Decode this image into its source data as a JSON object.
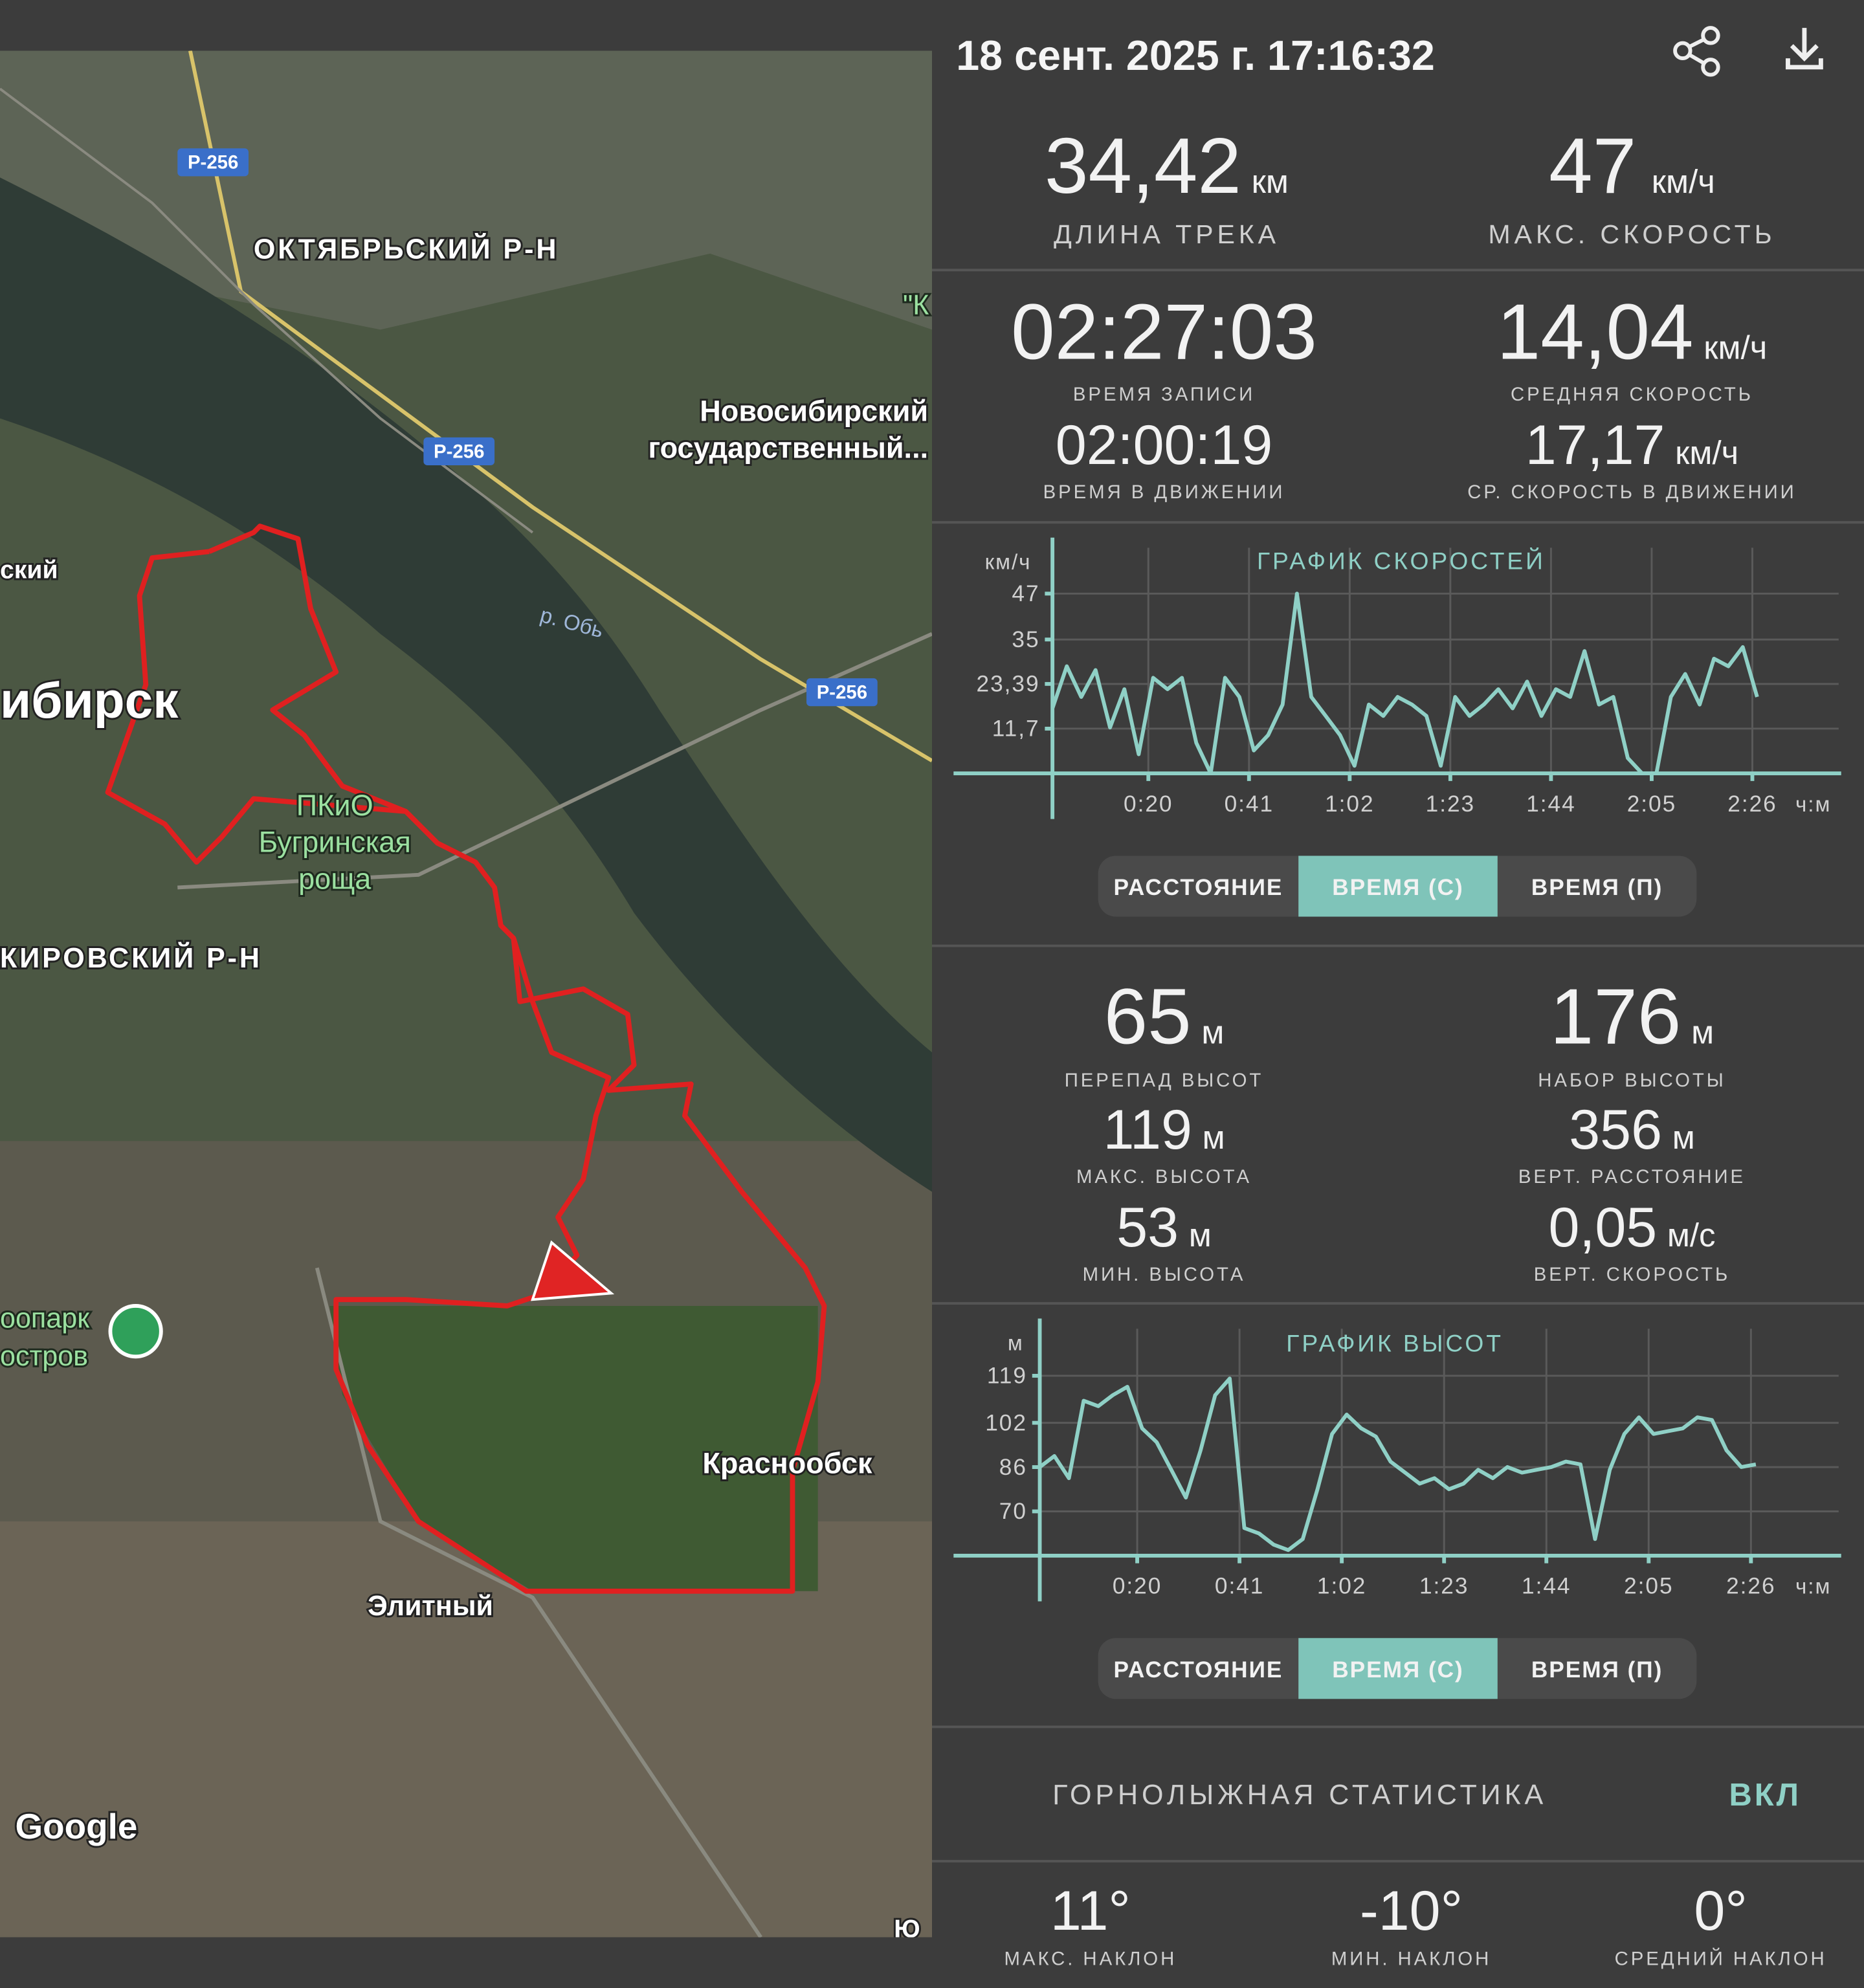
{
  "header": {
    "title": "18 сент. 2025 г. 17:16:32"
  },
  "map": {
    "labels": [
      "Р-256",
      "Р-256",
      "Р-256",
      "ОКТЯБРЬСКИЙ Р-Н",
      "Новосибирский",
      "государственный...",
      "р. Обь",
      "ибирск",
      "ский",
      "ПКиО",
      "Бугринская",
      "роща",
      "КИРОВСКИЙ Р-Н",
      "оопарк",
      "остров",
      "Краснообск",
      "Элитный",
      "Google",
      "\"К",
      "Ю"
    ]
  },
  "stats": [
    {
      "value": "34,42",
      "unit": "км",
      "label": "ДЛИНА ТРЕКА"
    },
    {
      "value": "47",
      "unit": "км/ч",
      "label": "МАКС. СКОРОСТЬ"
    },
    {
      "value": "02:27:03",
      "label": "ВРЕМЯ ЗАПИСИ"
    },
    {
      "value": "14,04",
      "unit": "км/ч",
      "label": "СРЕДНЯЯ СКОРОСТЬ"
    },
    {
      "value": "02:00:19",
      "label": "ВРЕМЯ В ДВИЖЕНИИ"
    },
    {
      "value": "17,17",
      "unit": "км/ч",
      "label": "СР. СКОРОСТЬ В ДВИЖЕНИИ"
    },
    {
      "value": "65",
      "unit": "м",
      "label": "ПЕРЕПАД ВЫСОТ"
    },
    {
      "value": "176",
      "unit": "м",
      "label": "НАБОР ВЫСОТЫ"
    },
    {
      "value": "119",
      "unit": "м",
      "label": "МАКС. ВЫСОТА"
    },
    {
      "value": "356",
      "unit": "м",
      "label": "ВЕРТ. РАССТОЯНИЕ"
    },
    {
      "value": "53",
      "unit": "м",
      "label": "МИН. ВЫСОТА"
    },
    {
      "value": "0,05",
      "unit": "м/с",
      "label": "ВЕРТ. СКОРОСТЬ"
    }
  ],
  "speed_chart": {
    "type": "line",
    "title": "ГРАФИК СКОРОСТЕЙ",
    "ylabel": "км/ч",
    "xlabel": "ч:м",
    "color": "#8fd0c6",
    "grid": true,
    "xlim": [
      0,
      164
    ],
    "ylim": [
      0,
      59
    ],
    "xticks": [
      {
        "value": 20,
        "label": "0:20"
      },
      {
        "value": 41,
        "label": "0:41"
      },
      {
        "value": 62,
        "label": "1:02"
      },
      {
        "value": 83,
        "label": "1:23"
      },
      {
        "value": 104,
        "label": "1:44"
      },
      {
        "value": 125,
        "label": "2:05"
      },
      {
        "value": 146,
        "label": "2:26"
      }
    ],
    "yticks": [
      {
        "value": 11.7,
        "label": "11,7"
      },
      {
        "value": 23.39,
        "label": "23,39"
      },
      35,
      47
    ],
    "x": [
      0,
      3,
      6,
      9,
      12,
      15,
      18,
      21,
      24,
      27,
      30,
      33,
      36,
      39,
      42,
      45,
      48,
      51,
      54,
      57,
      60,
      63,
      66,
      69,
      72,
      75,
      78,
      81,
      84,
      87,
      90,
      93,
      96,
      99,
      102,
      105,
      108,
      111,
      114,
      117,
      120,
      123,
      126,
      129,
      132,
      135,
      138,
      141,
      144,
      147
    ],
    "values": [
      17,
      28,
      20,
      27,
      12,
      22,
      5,
      25,
      22,
      25,
      8,
      0,
      25,
      20,
      6,
      10,
      18,
      47,
      20,
      15,
      10,
      2,
      18,
      15,
      20,
      18,
      15,
      2,
      20,
      15,
      18,
      22,
      17,
      24,
      15,
      22,
      20,
      32,
      18,
      20,
      4,
      0,
      0,
      20,
      26,
      18,
      30,
      28,
      33,
      20
    ]
  },
  "speed_toggle": {
    "options": [
      "РАССТОЯНИЕ",
      "ВРЕМЯ (С)",
      "ВРЕМЯ (П)"
    ],
    "selected": 1
  },
  "elevation_chart": {
    "type": "line",
    "title": "ГРАФИК ВЫСОТ",
    "ylabel": "м",
    "xlabel": "ч:м",
    "color": "#8fd0c6",
    "grid": true,
    "xlim": [
      0,
      164
    ],
    "ylim": [
      54,
      136
    ],
    "xticks": [
      {
        "value": 20,
        "label": "0:20"
      },
      {
        "value": 41,
        "label": "0:41"
      },
      {
        "value": 62,
        "label": "1:02"
      },
      {
        "value": 83,
        "label": "1:23"
      },
      {
        "value": 104,
        "label": "1:44"
      },
      {
        "value": 125,
        "label": "2:05"
      },
      {
        "value": 146,
        "label": "2:26"
      }
    ],
    "yticks": [
      70,
      86,
      102,
      119
    ],
    "x": [
      0,
      3,
      6,
      9,
      12,
      15,
      18,
      21,
      24,
      27,
      30,
      33,
      36,
      39,
      42,
      45,
      48,
      51,
      54,
      57,
      60,
      63,
      66,
      69,
      72,
      75,
      78,
      81,
      84,
      87,
      90,
      93,
      96,
      99,
      102,
      105,
      108,
      111,
      114,
      117,
      120,
      123,
      126,
      129,
      132,
      135,
      138,
      141,
      144,
      147
    ],
    "values": [
      86,
      90,
      82,
      110,
      108,
      112,
      115,
      100,
      95,
      85,
      75,
      92,
      112,
      118,
      64,
      62,
      58,
      56,
      60,
      78,
      98,
      105,
      100,
      97,
      88,
      84,
      80,
      82,
      78,
      80,
      85,
      82,
      86,
      84,
      85,
      86,
      88,
      87,
      60,
      85,
      98,
      104,
      98,
      99,
      100,
      104,
      103,
      92,
      86,
      87
    ]
  },
  "elevation_toggle": {
    "options": [
      "РАССТОЯНИЕ",
      "ВРЕМЯ (С)",
      "ВРЕМЯ (П)"
    ],
    "selected": 1
  },
  "ski": {
    "title": "ГОРНОЛЫЖНАЯ СТАТИСТИКА",
    "toggle": "ВКЛ",
    "stats": [
      {
        "value": "11°",
        "label": "МАКС. НАКЛОН"
      },
      {
        "value": "-10°",
        "label": "МИН. НАКЛОН"
      },
      {
        "value": "0°",
        "label": "СРЕДНИЙ НАКЛОН"
      }
    ]
  }
}
